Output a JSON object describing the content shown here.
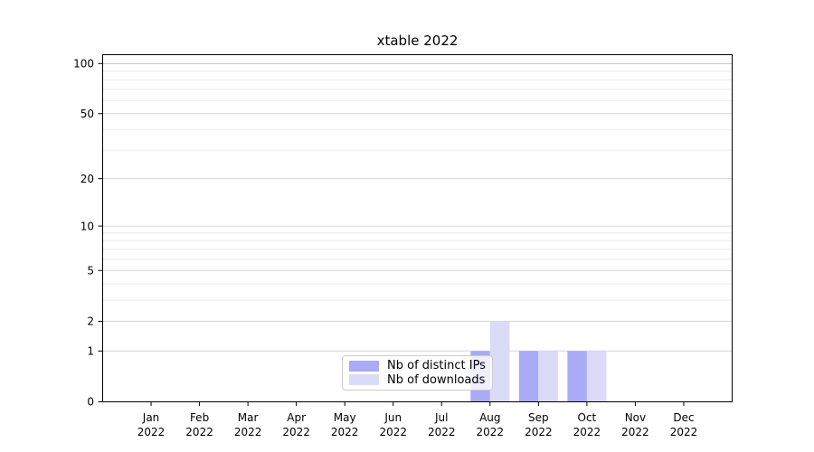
{
  "chart_data": {
    "type": "bar",
    "title": "xtable 2022",
    "categories": [
      "Jan",
      "Feb",
      "Mar",
      "Apr",
      "May",
      "Jun",
      "Jul",
      "Aug",
      "Sep",
      "Oct",
      "Nov",
      "Dec"
    ],
    "category_sublabel": "2022",
    "series": [
      {
        "name": "Nb of distinct IPs",
        "color": "#aaaaf6",
        "values": [
          0,
          0,
          0,
          0,
          0,
          0,
          0,
          1,
          1,
          1,
          0,
          0
        ]
      },
      {
        "name": "Nb of downloads",
        "color": "#dadaf9",
        "values": [
          0,
          0,
          0,
          0,
          0,
          0,
          0,
          2,
          1,
          1,
          0,
          0
        ]
      }
    ],
    "y_scale": "log1p",
    "y_ticks": [
      0,
      1,
      2,
      5,
      10,
      20,
      50,
      100
    ],
    "ylim": [
      0,
      113
    ],
    "xlabel": "",
    "ylabel": "",
    "grid": "horizontal",
    "grid_color_minor": "#ececec",
    "grid_color_major": "#d6d6d6",
    "grid_color_top": "#c2c2c2",
    "legend_position": "inside-bottom-center"
  }
}
